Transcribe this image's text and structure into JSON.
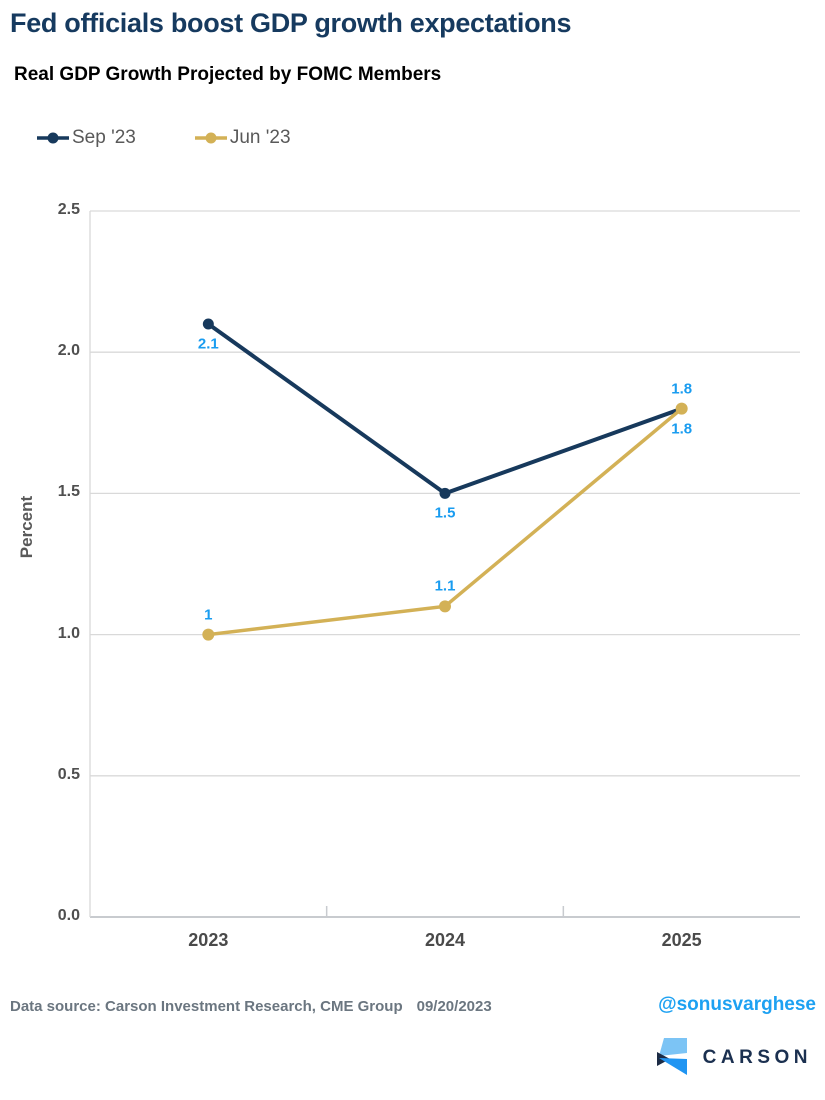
{
  "header": {
    "title": "Fed officials boost GDP growth expectations",
    "subtitle": "Real GDP Growth Projected by FOMC Members"
  },
  "legend": {
    "items": [
      {
        "label": "Sep '23"
      },
      {
        "label": "Jun '23"
      }
    ]
  },
  "chart_data": {
    "type": "line",
    "categories": [
      "2023",
      "2024",
      "2025"
    ],
    "series": [
      {
        "name": "Sep '23",
        "color": "#17395c",
        "values": [
          2.1,
          1.5,
          1.8
        ],
        "labels": [
          {
            "text": "2.1",
            "placement": "below"
          },
          {
            "text": "1.5",
            "placement": "below"
          },
          {
            "text": "1.8",
            "placement": "above"
          }
        ]
      },
      {
        "name": "Jun '23",
        "color": "#d3b156",
        "values": [
          1.0,
          1.1,
          1.8
        ],
        "labels": [
          {
            "text": "1",
            "placement": "above"
          },
          {
            "text": "1.1",
            "placement": "above"
          },
          {
            "text": "1.8",
            "placement": "below"
          }
        ]
      }
    ],
    "title": "Real GDP Growth Projected by FOMC Members",
    "xlabel": "",
    "ylabel": "Percent",
    "ylim": [
      0,
      2.5
    ],
    "yticks": [
      "0.0",
      "0.5",
      "1.0",
      "1.5",
      "2.0",
      "2.5"
    ],
    "grid": "horizontal",
    "legend_position": "top-left",
    "data_label_color": "#199cf0"
  },
  "footer": {
    "source": "Data source: Carson Investment Research, CME Group",
    "date": "09/20/2023",
    "handle": "@sonusvarghese",
    "logo_text": "CARSON"
  },
  "colors": {
    "title": "#163a5f",
    "grid": "#d9d9d9",
    "axis": "#c8cbcf",
    "tick_text": "#4f4f4f",
    "footer_text": "#6b7680",
    "handle_blue": "#1da1f2",
    "logo_light_blue": "#7cc4f5",
    "logo_mid_blue": "#2095f2",
    "logo_dark_navy": "#1c2b45"
  }
}
